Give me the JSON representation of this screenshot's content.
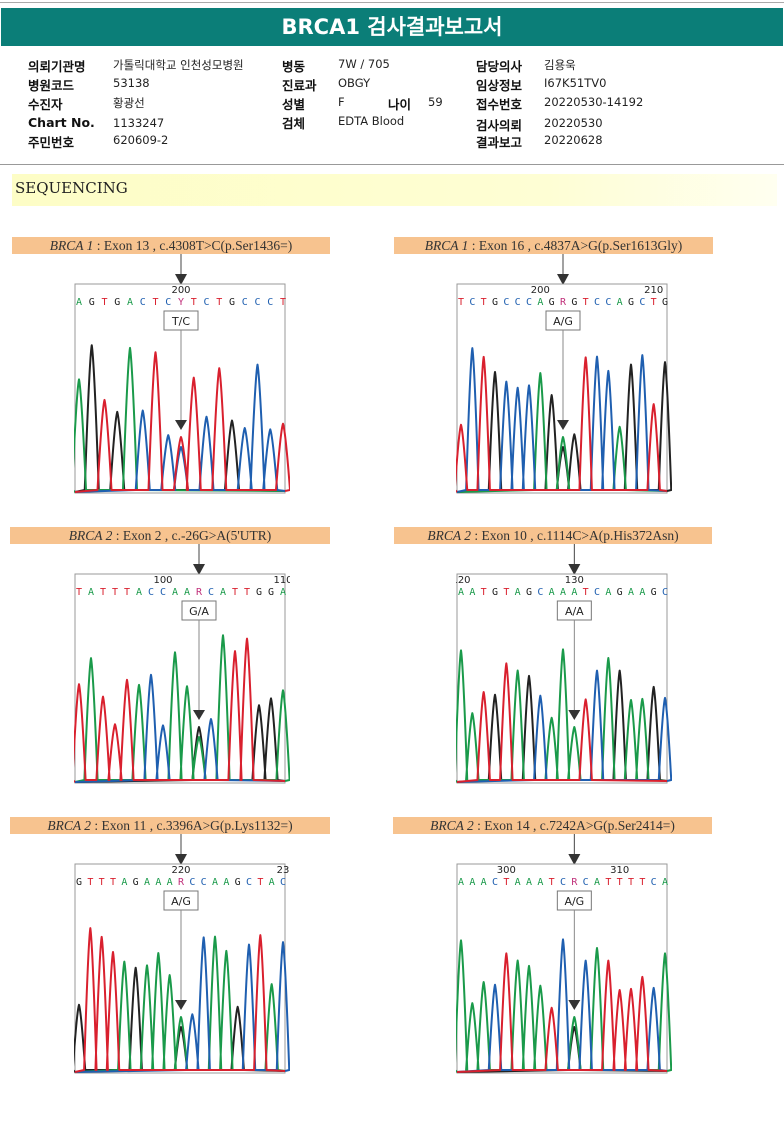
{
  "title": "BRCA1 검사결과보고서",
  "patient_info": {
    "col1": [
      {
        "label": "의뢰기관명",
        "value": "가톨릭대학교 인천성모병원"
      },
      {
        "label": "병원코드",
        "value": "53138"
      },
      {
        "label": "수진자",
        "value": "황광선"
      },
      {
        "label": "Chart No.",
        "value": "1133247"
      },
      {
        "label": "주민번호",
        "value": "620609-2"
      }
    ],
    "col2": [
      {
        "label": "병동",
        "value": "7W / 705"
      },
      {
        "label": "진료과",
        "value": "OBGY"
      },
      {
        "label": "성별",
        "value": "F"
      },
      {
        "label": "검체",
        "value": "EDTA Blood"
      }
    ],
    "age": {
      "label": "나이",
      "value": "59"
    },
    "col3": [
      {
        "label": "담당의사",
        "value": "김용욱"
      },
      {
        "label": "임상정보",
        "value": "I67K51TV0"
      },
      {
        "label": "접수번호",
        "value": "20220530-14192"
      },
      {
        "label": "검사의뢰",
        "value": "20220530"
      },
      {
        "label": "결과보고",
        "value": "20220628"
      }
    ]
  },
  "section_title": "SEQUENCING",
  "base_colors": {
    "A": "#1a9a4a",
    "C": "#1f5fb0",
    "G": "#222222",
    "T": "#d9202e",
    "mix": "#c0307a"
  },
  "variants": [
    {
      "gene": "BRCA 1",
      "detail": " : Exon 13 , c.4308T>C(p.Ser1436=)",
      "genotype": "T/C",
      "ticks": [
        {
          "label": "200",
          "index": 8
        }
      ],
      "sequence": "AGTGACTCYTCTGCCCT",
      "mix_index": 8,
      "mix_bases": "TC"
    },
    {
      "gene": "BRCA 1",
      "detail": " : Exon 16 , c.4837A>G(p.Ser1613Gly)",
      "genotype": "A/G",
      "ticks": [
        {
          "label": "200",
          "index": 7
        },
        {
          "label": "210",
          "index": 17
        }
      ],
      "sequence": "TCTGCCCAGRGTCCAGCTG",
      "mix_index": 9,
      "mix_bases": "AG"
    },
    {
      "gene": "BRCA 2",
      "detail": " : Exon 2 , c.-26G>A(5'UTR)",
      "genotype": "G/A",
      "ticks": [
        {
          "label": "100",
          "index": 7
        },
        {
          "label": "110",
          "index": 17
        }
      ],
      "sequence": "TATTTACCAARCATTGGA",
      "mix_index": 10,
      "mix_bases": "GA"
    },
    {
      "gene": "BRCA 2",
      "detail": " : Exon 10 , c.1114C>A(p.His372Asn)",
      "genotype": "A/A",
      "ticks": [
        {
          "label": "120",
          "index": 0
        },
        {
          "label": "130",
          "index": 10
        }
      ],
      "sequence": "AATGTAGCAAATCAGAAGC",
      "mix_index": 10,
      "mix_bases": "A"
    },
    {
      "gene": "BRCA 2",
      "detail": " : Exon 11 , c.3396A>G(p.Lys1132=)",
      "genotype": "A/G",
      "ticks": [
        {
          "label": "220",
          "index": 9
        },
        {
          "label": "23",
          "index": 18
        }
      ],
      "sequence": "GTTTAGAAARCCAAGCTAC",
      "mix_index": 9,
      "mix_bases": "AG"
    },
    {
      "gene": "BRCA 2",
      "detail": " : Exon 14 , c.7242A>G(p.Ser2414=)",
      "genotype": "A/G",
      "ticks": [
        {
          "label": "300",
          "index": 4
        },
        {
          "label": "310",
          "index": 14
        }
      ],
      "sequence": "AAACTAAATCRCATTTTCA",
      "mix_index": 10,
      "mix_bases": "AG"
    }
  ]
}
